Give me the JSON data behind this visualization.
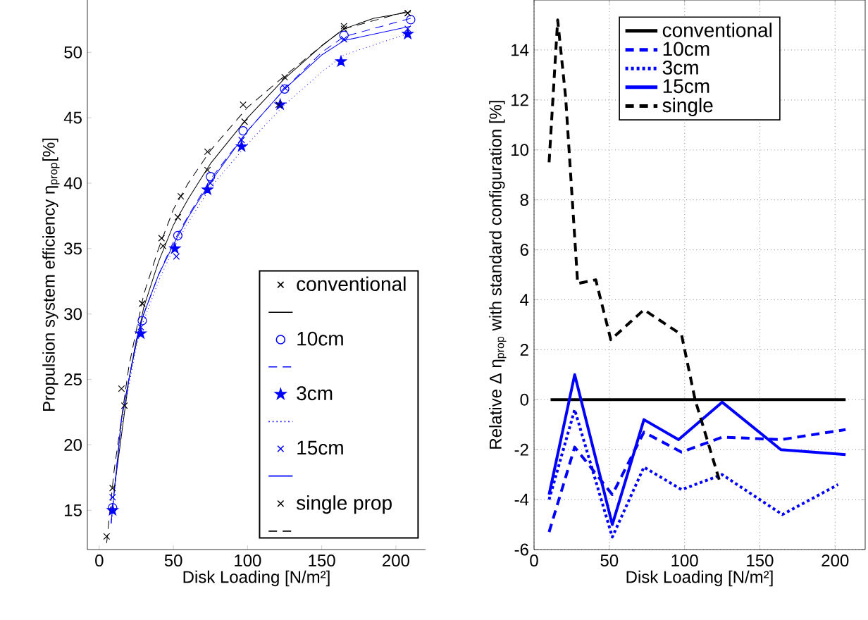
{
  "chart_data": [
    {
      "type": "scatter",
      "xlabel": "Disk Loading [N/m²]",
      "ylabel": "Propulsion system efficiency η$_{prop}$[%]",
      "xlim": [
        -8,
        220
      ],
      "ylim": [
        12,
        54
      ],
      "xticks": [
        0,
        50,
        100,
        150,
        200
      ],
      "yticks": [
        15,
        20,
        25,
        30,
        35,
        40,
        45,
        50
      ],
      "grid": false,
      "legend": "bottom right",
      "series": [
        {
          "name": "conventional",
          "type": "scatter",
          "marker": "cross",
          "color": "#000000",
          "x": [
            9,
            17,
            29,
            43,
            53,
            73,
            98,
            125,
            165,
            208
          ],
          "values": [
            16.7,
            23,
            30.8,
            35.2,
            37.4,
            41,
            44.7,
            48.1,
            51.8,
            53
          ]
        },
        {
          "type": "line",
          "line_style": "solid",
          "color": "#000000",
          "x": [
            10,
            20,
            30,
            40,
            50,
            60,
            75,
            100,
            125,
            150,
            165,
            185,
            210
          ],
          "values": [
            16.5,
            25,
            30.5,
            34,
            36.8,
            38.8,
            41.5,
            45,
            48,
            50.5,
            51.8,
            52.6,
            53.1
          ]
        },
        {
          "name": "10cm",
          "type": "scatter",
          "marker": "circle",
          "color": "#0000ff",
          "x": [
            9,
            29,
            53,
            75,
            97,
            125,
            165,
            210
          ],
          "values": [
            15.2,
            29.5,
            36,
            40.5,
            44,
            47.2,
            51.3,
            52.5
          ]
        },
        {
          "type": "line",
          "line_style": "dashed",
          "color": "#0000ff",
          "x": [
            8,
            15,
            25,
            30,
            40,
            50,
            60,
            75,
            100,
            125,
            150,
            165,
            210
          ],
          "values": [
            14,
            22,
            28,
            30,
            33,
            35.5,
            37.5,
            40.3,
            44,
            47.2,
            50,
            51.2,
            52.6
          ]
        },
        {
          "name": "3cm",
          "type": "scatter",
          "marker": "star",
          "color": "#0000ff",
          "x": [
            9,
            28,
            51,
            73,
            96,
            122,
            163,
            208
          ],
          "values": [
            15,
            28.5,
            35,
            39.5,
            42.8,
            46,
            49.3,
            51.4
          ]
        },
        {
          "type": "line",
          "line_style": "dotted",
          "color": "#0000ff",
          "x": [
            8,
            15,
            25,
            30,
            40,
            50,
            60,
            75,
            100,
            125,
            150,
            165,
            210
          ],
          "values": [
            14,
            21.5,
            27.5,
            29.5,
            32.5,
            35,
            37,
            39.7,
            43,
            46,
            48.5,
            49.8,
            51.5
          ]
        },
        {
          "name": "15cm",
          "type": "scatter",
          "marker": "cross",
          "color": "#0000ff",
          "x": [
            9,
            28,
            52,
            75,
            96,
            125,
            165,
            208
          ],
          "values": [
            16,
            29,
            34.4,
            40,
            43.3,
            47.3,
            51,
            51.8
          ]
        },
        {
          "type": "line",
          "line_style": "solid",
          "color": "#0000ff",
          "x": [
            8,
            15,
            25,
            30,
            40,
            50,
            60,
            75,
            100,
            125,
            150,
            165,
            210
          ],
          "values": [
            14,
            22,
            28,
            30,
            33,
            35.3,
            37.4,
            40.1,
            44,
            47.2,
            49.8,
            50.9,
            52
          ]
        },
        {
          "name": "single prop",
          "type": "scatter",
          "marker": "cross",
          "color": "#000000",
          "x": [
            5,
            15,
            29,
            42,
            55,
            73,
            97,
            121,
            165,
            208
          ],
          "values": [
            13,
            24.3,
            30.8,
            35.8,
            39,
            42.4,
            46,
            46,
            52,
            53
          ]
        },
        {
          "type": "line",
          "line_style": "dashed",
          "color": "#000000",
          "x": [
            5,
            10,
            20,
            30,
            40,
            50,
            60,
            75,
            100,
            125,
            150,
            165,
            210
          ],
          "values": [
            12.5,
            18,
            26,
            31.5,
            35,
            38,
            40,
            42.5,
            45.8,
            48.2,
            50.5,
            51.8,
            53.2
          ]
        }
      ]
    },
    {
      "type": "line",
      "xlabel": "Disk Loading [N/m²]",
      "ylabel": "Relative Δ η$_{prop}$ with standard configuration [%]",
      "xlim": [
        0,
        220
      ],
      "ylim": [
        -6,
        16
      ],
      "xticks": [
        0,
        50,
        100,
        150,
        200
      ],
      "yticks": [
        -6,
        -4,
        -2,
        0,
        2,
        4,
        6,
        8,
        10,
        12,
        14
      ],
      "grid": true,
      "legend": "top",
      "series": [
        {
          "name": "conventional",
          "line_style": "solid",
          "color": "#000000",
          "x": [
            11,
            207
          ],
          "values": [
            0,
            0
          ]
        },
        {
          "name": "10cm",
          "line_style": "dashed",
          "color": "#0000ff",
          "x": [
            10,
            27,
            52,
            73,
            98,
            125,
            164,
            207
          ],
          "values": [
            -5.3,
            -1.9,
            -3.8,
            -1.3,
            -2.1,
            -1.5,
            -1.6,
            -1.2
          ]
        },
        {
          "name": "3cm",
          "line_style": "dotted",
          "color": "#0000ff",
          "x": [
            10,
            27,
            52,
            73,
            98,
            125,
            165,
            202
          ],
          "values": [
            -4,
            -0.4,
            -5.5,
            -2.7,
            -3.6,
            -3,
            -4.6,
            -3.4
          ]
        },
        {
          "name": "15cm",
          "line_style": "solid",
          "color": "#0000ff",
          "x": [
            10,
            27,
            52,
            73,
            96,
            125,
            164,
            207
          ],
          "values": [
            -3.8,
            1,
            -5,
            -0.8,
            -1.6,
            -0.1,
            -2,
            -2.2
          ]
        },
        {
          "name": "single",
          "line_style": "dashed",
          "color": "#000000",
          "x": [
            10,
            15.7,
            21,
            29,
            41,
            51,
            73,
            98,
            107,
            123
          ],
          "values": [
            9.5,
            15.2,
            12.1,
            4.65,
            4.8,
            2.4,
            3.6,
            2.6,
            0,
            -3.2
          ]
        }
      ]
    }
  ]
}
